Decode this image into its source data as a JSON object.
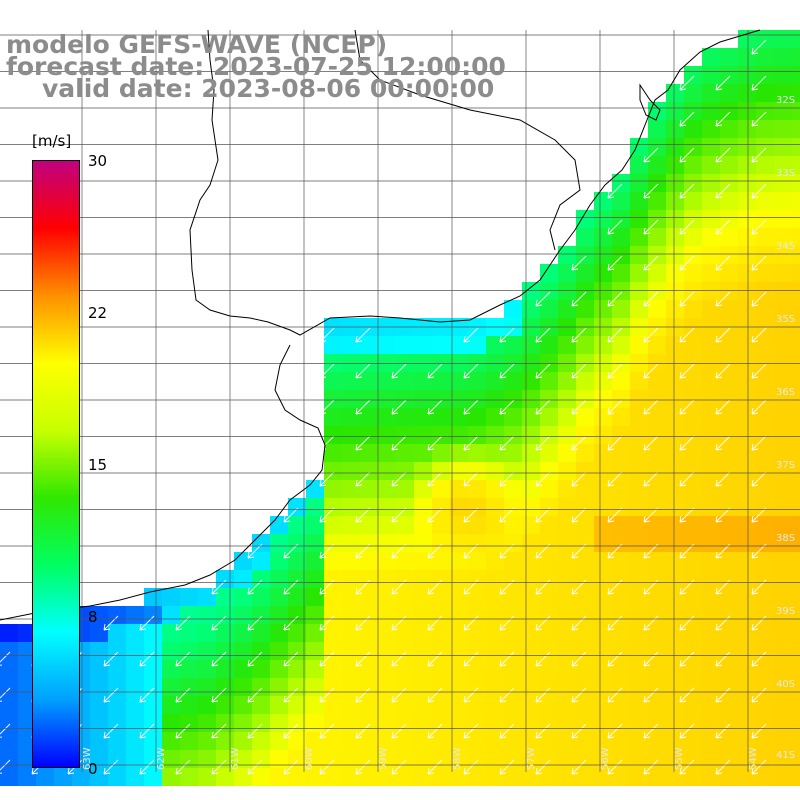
{
  "title": {
    "line1": "modelo GEFS-WAVE (NCEP)",
    "line2": "forecast date: 2023-07-25 12:00:00",
    "line3": "valid date: 2023-08-06 00:00:00"
  },
  "colorbar": {
    "unit": "[m/s]",
    "ticks": [
      "30",
      "22",
      "15",
      "8",
      "0"
    ],
    "colors": [
      "#0000ff",
      "#00a0ff",
      "#00ffff",
      "#00ff60",
      "#30e800",
      "#c8ff00",
      "#ffff00",
      "#ff9000",
      "#ff0000",
      "#c00080"
    ]
  },
  "map": {
    "lat_labels": [
      "32S",
      "33S",
      "34S",
      "35S",
      "36S",
      "37S",
      "38S",
      "39S",
      "40S",
      "41S"
    ],
    "lon_labels": [
      "63W",
      "62W",
      "61W",
      "60W",
      "59W",
      "58W",
      "57W",
      "56W",
      "55W",
      "54W"
    ],
    "land_color": "#ffffff",
    "grid_color": "#444444",
    "arrow_color": "#ffffff"
  }
}
